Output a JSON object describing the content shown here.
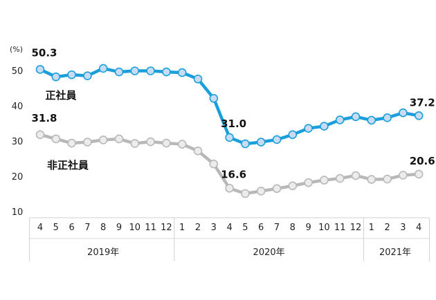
{
  "chart_data": {
    "type": "line",
    "y_unit": "(%)",
    "ylim": [
      10,
      50
    ],
    "y_ticks": [
      "10",
      "20",
      "30",
      "40",
      "50"
    ],
    "grid": false,
    "categories": [
      "4",
      "5",
      "6",
      "7",
      "8",
      "9",
      "10",
      "11",
      "12",
      "1",
      "2",
      "3",
      "4",
      "5",
      "6",
      "7",
      "8",
      "9",
      "10",
      "11",
      "12",
      "1",
      "2",
      "3",
      "4"
    ],
    "year_groups": [
      {
        "label": "2019年",
        "count": 9
      },
      {
        "label": "2020年",
        "count": 12
      },
      {
        "label": "2021年",
        "count": 4
      }
    ],
    "series": [
      {
        "name": "正社員",
        "color": "#1a9fdb",
        "marker_color": "#c9dbf2",
        "values": [
          50.3,
          48.2,
          48.8,
          48.5,
          50.6,
          49.6,
          49.9,
          49.9,
          49.6,
          49.4,
          47.6,
          42.1,
          31.0,
          29.2,
          29.7,
          30.4,
          31.8,
          33.6,
          34.2,
          36.0,
          36.9,
          35.9,
          36.6,
          38.0,
          37.2
        ],
        "labels": [
          {
            "index": 0,
            "text": "50.3"
          },
          {
            "index": 12,
            "text": "31.0"
          },
          {
            "index": 24,
            "text": "37.2"
          }
        ]
      },
      {
        "name": "非正社員",
        "color": "#b8b8b8",
        "marker_color": "#ececec",
        "values": [
          31.8,
          30.6,
          29.4,
          29.7,
          30.3,
          30.6,
          29.3,
          29.8,
          29.4,
          29.1,
          27.2,
          23.5,
          16.6,
          15.1,
          15.8,
          16.5,
          17.3,
          18.2,
          18.9,
          19.4,
          20.2,
          19.1,
          19.2,
          20.3,
          20.6
        ],
        "labels": [
          {
            "index": 0,
            "text": "31.8"
          },
          {
            "index": 12,
            "text": "16.6"
          },
          {
            "index": 24,
            "text": "20.6"
          }
        ]
      }
    ]
  }
}
